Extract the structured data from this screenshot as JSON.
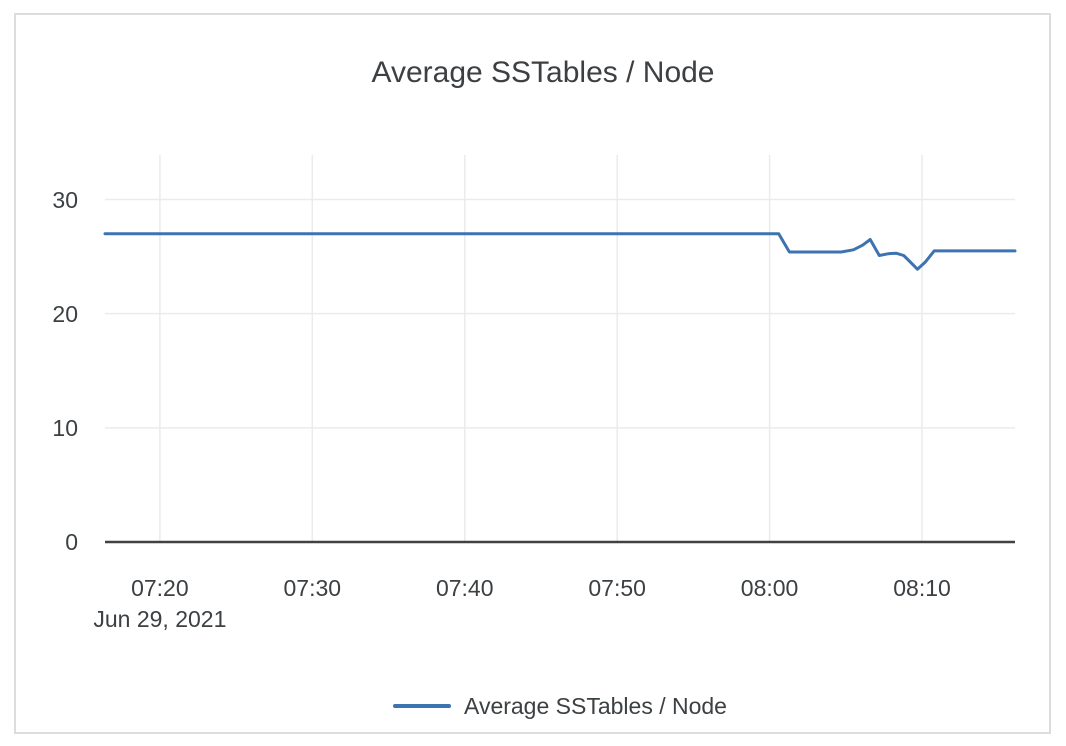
{
  "page": {
    "background": "#ffffff"
  },
  "colors": {
    "card_border": "#dcdcdc",
    "gridline": "#ebebeb",
    "axis": "#414141",
    "text": "#3c4043"
  },
  "chart_data": {
    "type": "line",
    "title": "Average SSTables / Node",
    "x_date_label": "Jun 29, 2021",
    "xlabel": "",
    "ylabel": "",
    "x_ticks": [
      "07:20",
      "07:30",
      "07:40",
      "07:50",
      "08:00",
      "08:10"
    ],
    "y_ticks": [
      0,
      10,
      20,
      30
    ],
    "xlim": [
      "07:16:24",
      "08:16:06"
    ],
    "ylim": [
      0,
      33.9
    ],
    "grid": true,
    "legend_position": "bottom-center",
    "series": [
      {
        "name": "Average SSTables / Node",
        "color": "#3e73b1",
        "points": [
          {
            "t": "07:16:24",
            "v": 27
          },
          {
            "t": "08:00:36",
            "v": 27
          },
          {
            "t": "08:01:18",
            "v": 25.4
          },
          {
            "t": "08:04:42",
            "v": 25.4
          },
          {
            "t": "08:05:30",
            "v": 25.6
          },
          {
            "t": "08:06:06",
            "v": 26.0
          },
          {
            "t": "08:06:36",
            "v": 26.5
          },
          {
            "t": "08:07:12",
            "v": 25.1
          },
          {
            "t": "08:07:48",
            "v": 25.25
          },
          {
            "t": "08:08:18",
            "v": 25.3
          },
          {
            "t": "08:08:48",
            "v": 25.1
          },
          {
            "t": "08:09:06",
            "v": 24.7
          },
          {
            "t": "08:09:42",
            "v": 23.9
          },
          {
            "t": "08:10:12",
            "v": 24.5
          },
          {
            "t": "08:10:48",
            "v": 25.5
          },
          {
            "t": "08:16:06",
            "v": 25.5
          }
        ]
      }
    ]
  }
}
